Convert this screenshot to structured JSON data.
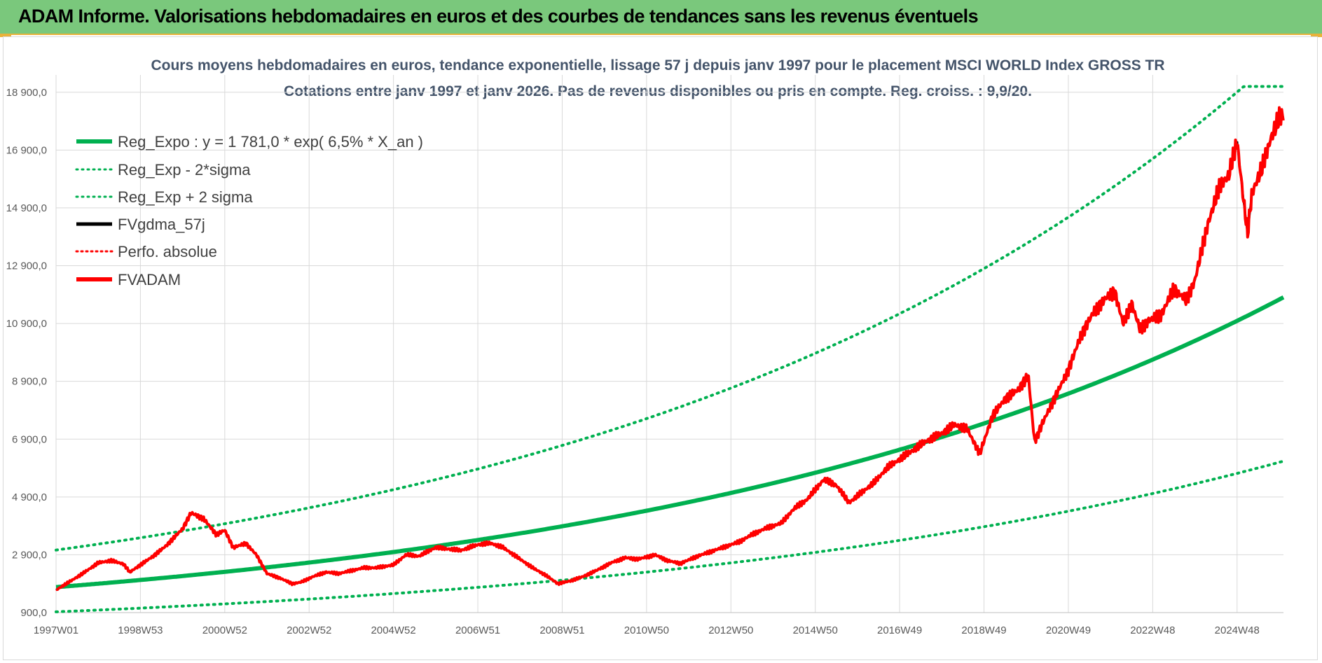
{
  "banner": {
    "title": "ADAM Informe. Valorisations hebdomadaires en euros et des courbes de tendances sans les revenus éventuels",
    "color": "#7ac87c",
    "accent": "#e9b23a"
  },
  "chart_data": {
    "type": "line",
    "title_line1": "Cours moyens hebdomadaires en euros, tendance exponentielle, lissage 57 j depuis janv 1997 pour le placement MSCI WORLD Index GROSS TR",
    "title_line2": "Cotations entre janv 1997 et janv 2026. Pas de revenus disponibles ou pris en compte. Reg. croiss. : 9,9/20.",
    "xlabel": "",
    "ylabel": "",
    "ylim": [
      900,
      19500
    ],
    "y_ticks": [
      "900,0",
      "2 900,0",
      "4 900,0",
      "6 900,0",
      "8 900,0",
      "10 900,0",
      "12 900,0",
      "14 900,0",
      "16 900,0",
      "18 900,0"
    ],
    "y_tick_values": [
      900,
      2900,
      4900,
      6900,
      8900,
      10900,
      12900,
      14900,
      16900,
      18900
    ],
    "x_ticks": [
      "1997W01",
      "1998W53",
      "2000W52",
      "2002W52",
      "2004W52",
      "2006W51",
      "2008W51",
      "2010W50",
      "2012W50",
      "2014W50",
      "2016W49",
      "2018W49",
      "2020W49",
      "2022W48",
      "2024W48"
    ],
    "x_tick_years": [
      1997.0,
      1999.0,
      2001.0,
      2003.0,
      2005.0,
      2007.0,
      2009.0,
      2011.0,
      2013.0,
      2015.0,
      2017.0,
      2019.0,
      2021.0,
      2023.0,
      2025.0
    ],
    "xlim": [
      1997.0,
      2026.1
    ],
    "grid": true,
    "legend_position": "top-left",
    "regression": {
      "a": 1781.0,
      "rate": 0.065
    },
    "series": [
      {
        "name": "Reg_Expo : y = 1 781,0 * exp( 6,5% *  X_an )",
        "color": "#00b050",
        "style": "solid-thick"
      },
      {
        "name": "Reg_Exp - 2*sigma",
        "color": "#00b050",
        "style": "dotted",
        "factor": 0.52
      },
      {
        "name": "Reg_Exp + 2 sigma",
        "color": "#00b050",
        "style": "dotted",
        "factor": 1.72,
        "cap": 19100
      },
      {
        "name": "FVgdma_57j",
        "color": "#000000",
        "style": "solid"
      },
      {
        "name": "Perfo. absolue",
        "color": "#ff0000",
        "style": "dotted"
      },
      {
        "name": "FVADAM",
        "color": "#ff0000",
        "style": "solid-thick",
        "x": [
          1997.0,
          1997.3,
          1997.6,
          1998.0,
          1998.3,
          1998.6,
          1998.75,
          1999.0,
          1999.3,
          1999.6,
          2000.0,
          2000.2,
          2000.5,
          2000.8,
          2001.0,
          2001.2,
          2001.5,
          2001.75,
          2002.0,
          2002.3,
          2002.6,
          2002.8,
          2003.1,
          2003.4,
          2003.7,
          2004.0,
          2004.3,
          2004.6,
          2005.0,
          2005.3,
          2005.6,
          2006.0,
          2006.3,
          2006.6,
          2007.0,
          2007.3,
          2007.6,
          2008.0,
          2008.3,
          2008.6,
          2008.9,
          2009.2,
          2009.5,
          2009.8,
          2010.2,
          2010.5,
          2010.8,
          2011.2,
          2011.5,
          2011.8,
          2012.2,
          2012.5,
          2012.8,
          2013.2,
          2013.5,
          2013.8,
          2014.2,
          2014.5,
          2014.8,
          2015.2,
          2015.5,
          2015.8,
          2016.1,
          2016.4,
          2016.7,
          2017.0,
          2017.3,
          2017.6,
          2018.0,
          2018.3,
          2018.6,
          2018.9,
          2019.2,
          2019.5,
          2019.8,
          2020.05,
          2020.2,
          2020.4,
          2020.7,
          2021.0,
          2021.3,
          2021.6,
          2021.9,
          2022.1,
          2022.3,
          2022.5,
          2022.7,
          2022.9,
          2023.2,
          2023.5,
          2023.8,
          2024.0,
          2024.3,
          2024.6,
          2024.8,
          2025.0,
          2025.15,
          2025.25,
          2025.35,
          2025.6,
          2025.8,
          2026.0,
          2026.1
        ],
        "y": [
          1680,
          1950,
          2220,
          2620,
          2700,
          2580,
          2300,
          2550,
          2850,
          3200,
          3800,
          4350,
          4150,
          3600,
          3750,
          3150,
          3300,
          2900,
          2250,
          2100,
          1900,
          1950,
          2150,
          2300,
          2250,
          2350,
          2450,
          2450,
          2550,
          2900,
          2850,
          3150,
          3100,
          3050,
          3250,
          3300,
          3150,
          2750,
          2450,
          2200,
          1900,
          2000,
          2150,
          2350,
          2650,
          2800,
          2750,
          2900,
          2700,
          2600,
          2850,
          3000,
          3150,
          3350,
          3600,
          3800,
          4000,
          4500,
          4800,
          5500,
          5300,
          4700,
          5050,
          5400,
          5900,
          6200,
          6500,
          6800,
          7100,
          7400,
          7250,
          6400,
          7700,
          8300,
          8600,
          9100,
          6800,
          7500,
          8400,
          9300,
          10500,
          11300,
          11800,
          12000,
          10900,
          11600,
          10700,
          11000,
          11200,
          12100,
          11700,
          12400,
          14300,
          15700,
          16000,
          17200,
          15200,
          14000,
          15400,
          16300,
          17300,
          18000,
          18100
        ]
      }
    ]
  }
}
